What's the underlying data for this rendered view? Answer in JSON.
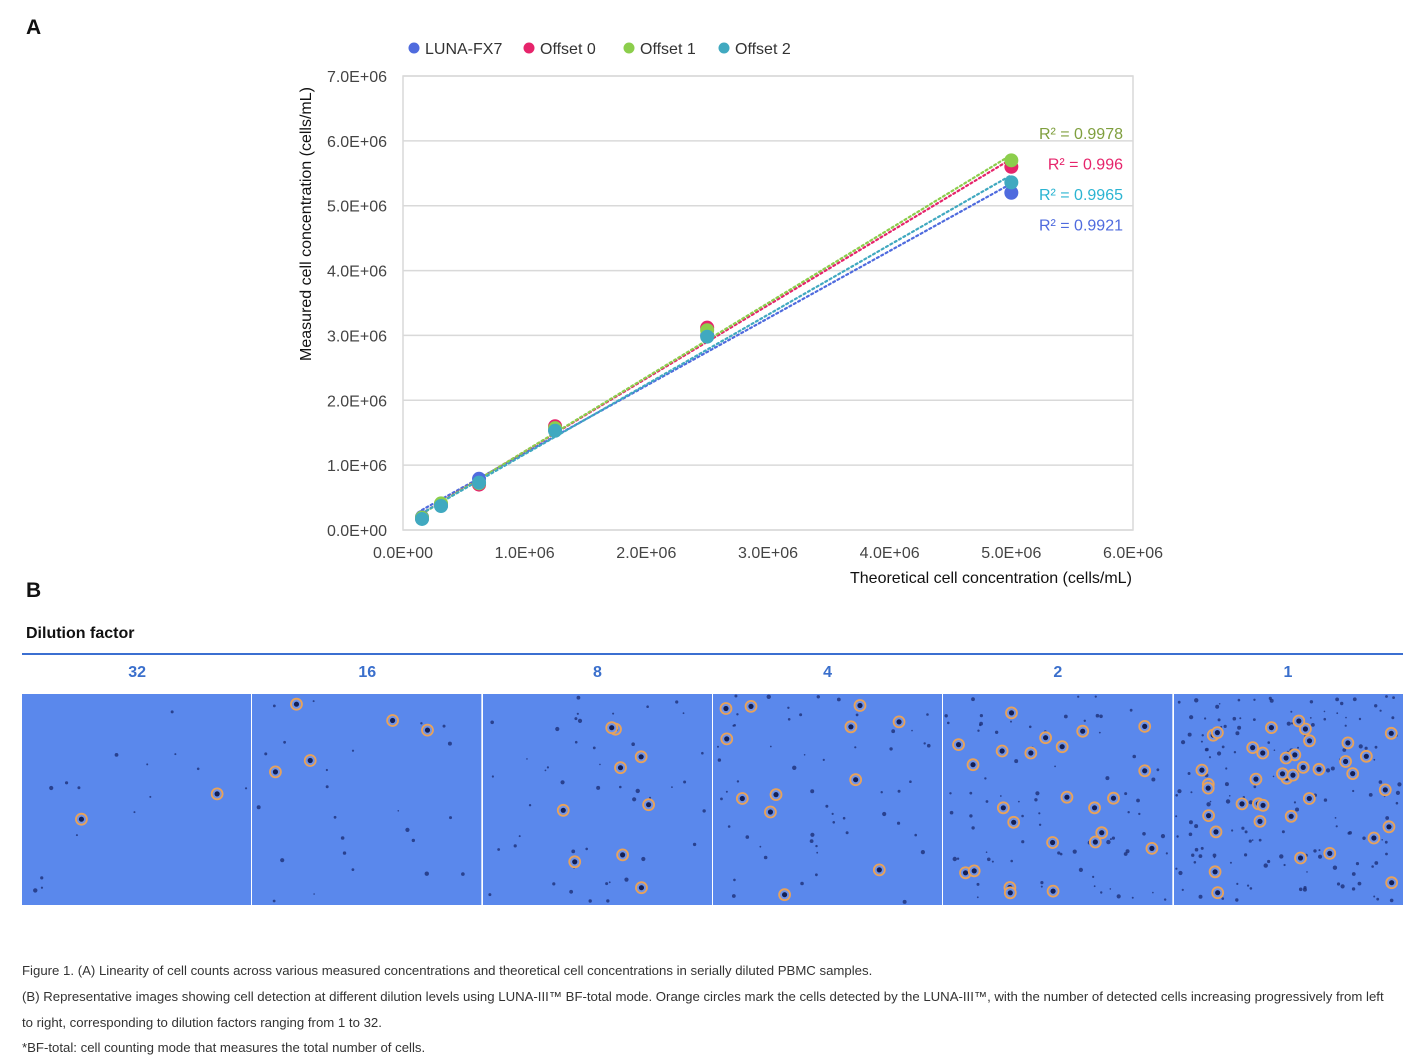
{
  "panel_a_letter": "A",
  "panel_b_letter": "B",
  "chart_data": {
    "type": "scatter",
    "title": "",
    "xlabel": "Theoretical cell  concentration (cells/mL)",
    "ylabel": "Measured cell concentration (cells/mL)",
    "xlim": [
      0,
      6000000
    ],
    "ylim": [
      0,
      7000000
    ],
    "x_ticks": [
      0,
      1000000,
      2000000,
      3000000,
      4000000,
      5000000,
      6000000
    ],
    "x_tick_labels": [
      "0.0E+00",
      "1.0E+06",
      "2.0E+06",
      "3.0E+06",
      "4.0E+06",
      "5.0E+06",
      "6.0E+06"
    ],
    "y_ticks": [
      0,
      1000000,
      2000000,
      3000000,
      4000000,
      5000000,
      6000000,
      7000000
    ],
    "y_tick_labels": [
      "0.0E+00",
      "1.0E+06",
      "2.0E+06",
      "3.0E+06",
      "4.0E+06",
      "5.0E+06",
      "6.0E+06",
      "7.0E+06"
    ],
    "grid": "horizontal",
    "legend_position": "top",
    "trendline": "linear, dotted",
    "x": [
      156250,
      312500,
      625000,
      1250000,
      2500000,
      5000000
    ],
    "series": [
      {
        "name": "LUNA-FX7",
        "color": "#4f6bde",
        "values": [
          200000,
          380000,
          790000,
          1540000,
          3000000,
          5200000
        ],
        "r2_label": "R² = 0.9921",
        "r2_color": "#4f6bde"
      },
      {
        "name": "Offset 0",
        "color": "#e6246b",
        "values": [
          180000,
          390000,
          700000,
          1600000,
          3120000,
          5600000
        ],
        "r2_label": "R² = 0.996",
        "r2_color": "#e6246b"
      },
      {
        "name": "Offset 1",
        "color": "#8cce4c",
        "values": [
          190000,
          410000,
          720000,
          1570000,
          3080000,
          5700000
        ],
        "r2_label": "R² = 0.9978",
        "r2_color": "#7f9f3e"
      },
      {
        "name": "Offset 2",
        "color": "#40a9c0",
        "values": [
          170000,
          370000,
          730000,
          1530000,
          2980000,
          5360000
        ],
        "r2_label": "R² = 0.9965",
        "r2_color": "#2bb4d2"
      }
    ]
  },
  "dilution": {
    "title": "Dilution factor",
    "factors": [
      "32",
      "16",
      "8",
      "4",
      "2",
      "1"
    ],
    "detected_ring_color": "#e8a25a",
    "background_color": "#5a88ec"
  },
  "caption": {
    "line1": "Figure 1. (A) Linearity of cell counts across various measured concentrations and theoretical cell concentrations in serially diluted PBMC samples.",
    "line2": "(B) Representative images showing cell detection at different dilution levels using LUNA-III™ BF-total mode. Orange circles mark the cells detected by the LUNA-III™, with the number of detected cells increasing progressively from left to right, corresponding to dilution factors ranging from 1 to 32.",
    "line3": "*BF-total: cell counting mode that measures the total number of cells."
  }
}
